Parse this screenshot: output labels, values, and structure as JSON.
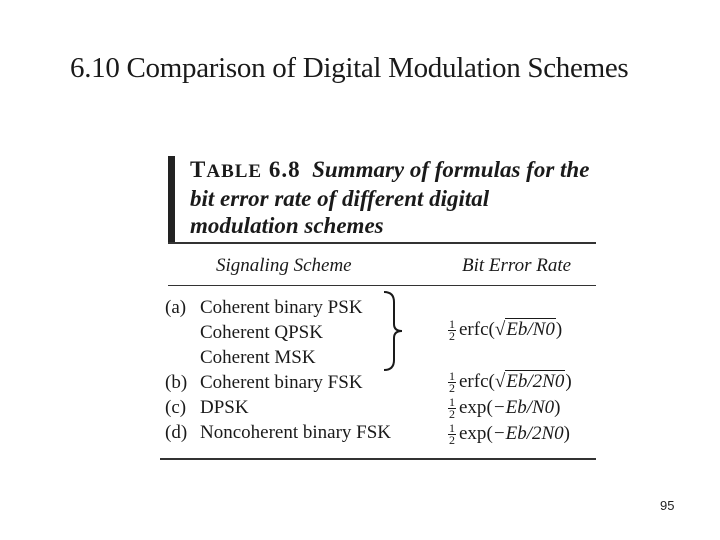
{
  "heading": "6.10 Comparison of Digital Modulation Schemes",
  "table": {
    "label_prefix": "T",
    "label_smallcaps": "ABLE",
    "label_number": "6.8",
    "caption": "Summary of formulas for the bit error rate of different digital modulation schemes",
    "columns": {
      "scheme": "Signaling Scheme",
      "rate": "Bit Error Rate"
    },
    "rows": [
      {
        "label": "(a)",
        "scheme": "Coherent binary PSK"
      },
      {
        "label": "",
        "scheme": "Coherent QPSK"
      },
      {
        "label": "",
        "scheme": "Coherent MSK"
      },
      {
        "label": "(b)",
        "scheme": "Coherent binary FSK"
      },
      {
        "label": "(c)",
        "scheme": "DPSK"
      },
      {
        "label": "(d)",
        "scheme": "Noncoherent binary FSK"
      }
    ],
    "rates": {
      "a_func": "erfc",
      "a_arg": "Eb/N0",
      "b_func": "erfc",
      "b_arg": "Eb/2N0",
      "c_func": "exp",
      "c_arg": "−Eb/N0",
      "d_func": "exp",
      "d_arg": "−Eb/2N0",
      "half_num": "1",
      "half_den": "2"
    }
  },
  "page_number": "95"
}
